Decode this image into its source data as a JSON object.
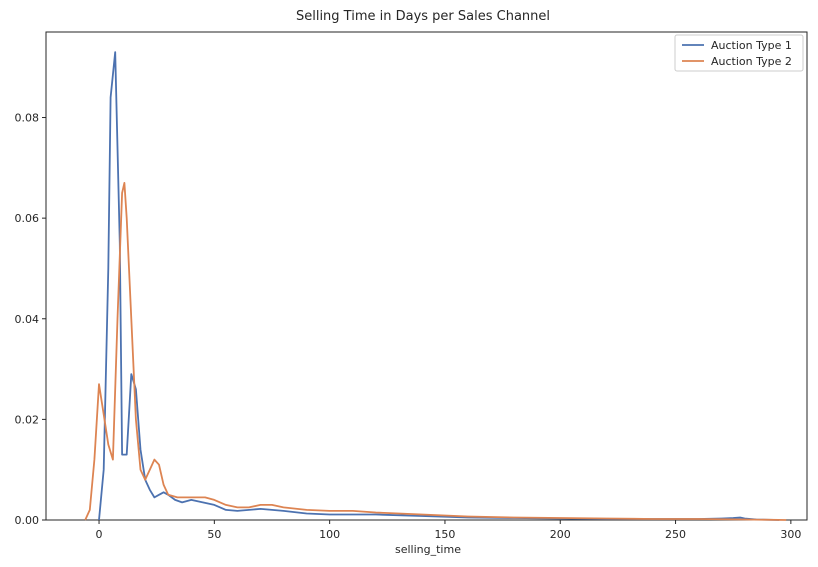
{
  "chart_data": {
    "type": "line",
    "title": "Selling Time in Days per Sales Channel",
    "xlabel": "selling_time",
    "ylabel": "",
    "xlim": [
      -23,
      307
    ],
    "ylim": [
      0,
      0.097
    ],
    "xticks": [
      0,
      50,
      100,
      150,
      200,
      250,
      300
    ],
    "yticks": [
      0.0,
      0.02,
      0.04,
      0.06,
      0.08
    ],
    "ytick_labels": [
      "0.00",
      "0.02",
      "0.04",
      "0.06",
      "0.08"
    ],
    "grid": false,
    "legend_position": "top-right",
    "series": [
      {
        "name": "Auction Type 1",
        "color": "#4c72b0",
        "x": [
          0,
          2,
          4,
          5,
          7,
          9,
          10,
          12,
          14,
          16,
          18,
          20,
          22,
          24,
          26,
          28,
          30,
          33,
          36,
          40,
          45,
          50,
          55,
          60,
          70,
          80,
          90,
          100,
          120,
          140,
          160,
          180,
          200,
          220,
          240,
          260,
          270,
          275,
          278,
          280,
          285,
          295
        ],
        "y": [
          0.0,
          0.01,
          0.05,
          0.084,
          0.093,
          0.055,
          0.013,
          0.013,
          0.029,
          0.026,
          0.014,
          0.008,
          0.006,
          0.0045,
          0.005,
          0.0055,
          0.005,
          0.004,
          0.0035,
          0.004,
          0.0035,
          0.003,
          0.002,
          0.0018,
          0.0022,
          0.0018,
          0.0013,
          0.0011,
          0.0011,
          0.0008,
          0.0005,
          0.0004,
          0.0003,
          0.0002,
          0.0002,
          0.0002,
          0.0003,
          0.0004,
          0.0005,
          0.0003,
          0.0001,
          0.0
        ]
      },
      {
        "name": "Auction Type 2",
        "color": "#dd8452",
        "x": [
          -6,
          -4,
          -2,
          0,
          2,
          4,
          6,
          8,
          10,
          11,
          12,
          14,
          16,
          18,
          20,
          22,
          24,
          26,
          28,
          30,
          34,
          40,
          46,
          50,
          55,
          60,
          65,
          70,
          75,
          80,
          90,
          100,
          110,
          120,
          130,
          140,
          160,
          180,
          200,
          220,
          240,
          260,
          280,
          298
        ],
        "y": [
          0.0,
          0.002,
          0.012,
          0.027,
          0.021,
          0.015,
          0.012,
          0.04,
          0.065,
          0.067,
          0.06,
          0.04,
          0.02,
          0.01,
          0.008,
          0.01,
          0.012,
          0.011,
          0.007,
          0.005,
          0.0045,
          0.0045,
          0.0045,
          0.004,
          0.003,
          0.0025,
          0.0025,
          0.003,
          0.003,
          0.0025,
          0.002,
          0.0018,
          0.0018,
          0.0015,
          0.0013,
          0.0011,
          0.0007,
          0.0005,
          0.0004,
          0.0003,
          0.0002,
          0.0002,
          0.0001,
          0.0
        ]
      }
    ]
  }
}
